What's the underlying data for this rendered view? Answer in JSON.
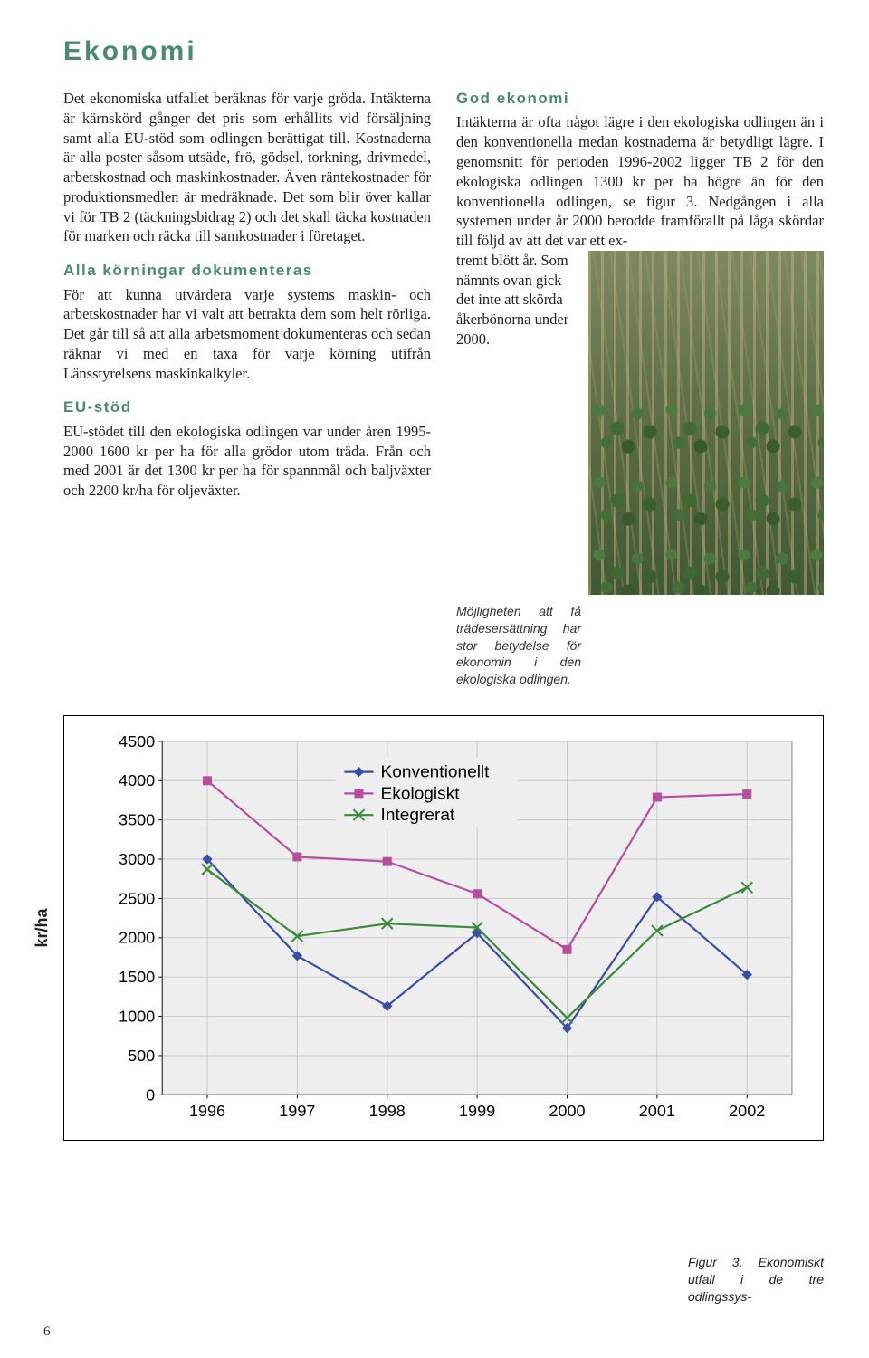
{
  "heading": "Ekonomi",
  "col_left": {
    "p1": "Det ekonomiska utfallet beräknas för varje gröda. Intäkterna är kärnskörd gånger det pris som erhållits vid försäljning samt alla EU-stöd som odlingen berättigat till. Kostnaderna är alla poster såsom utsäde, frö, gödsel, torkning, drivmedel, arbetskostnad och maskinkostnader. Även räntekostnader för produktionsmedlen är medräknade. Det som blir över kallar vi för TB 2 (täckningsbidrag 2) och det skall täcka kostnaden för marken och räcka till samkostnader i företaget.",
    "h2": "Alla körningar dokumenteras",
    "p2": "För att kunna utvärdera varje systems maskin- och arbetskostnader har vi valt att betrakta dem som helt rörliga. Det går till så att alla arbetsmoment dokumenteras och sedan räknar vi med en taxa för varje körning utifrån Länsstyrelsens maskinkalkyler.",
    "h3": "EU-stöd",
    "p3": "EU-stödet till den ekologiska odlingen var under åren 1995-2000 1600 kr per ha för alla grödor utom träda. Från och med 2001 är det 1300 kr per ha för spannmål och baljväxter och 2200 kr/ha för oljeväxter."
  },
  "col_right": {
    "h1": "God ekonomi",
    "p1": "Intäkterna är ofta något lägre i den ekologiska odlingen än i den konventionella medan kostnaderna är betydligt lägre. I genomsnitt för perioden 1996-2002 ligger TB 2 för den ekologiska odlingen 1300 kr per ha högre än för den konventionella odlingen, se figur 3. Nedgången i alla systemen under år 2000 berodde framförallt på låga skördar till följd av att det var ett ex-",
    "wrap": "tremt blött år. Som nämnts ovan gick det inte att skörda åkerbönorna under 2000.",
    "caption": "Möjligheten att få trädesersättning har stor betydelse för ekonomin i den ekologiska odlingen."
  },
  "chart": {
    "y_title": "kr/ha",
    "y_min": 0,
    "y_max": 4500,
    "y_step": 500,
    "x_labels": [
      "1996",
      "1997",
      "1998",
      "1999",
      "2000",
      "2001",
      "2002"
    ],
    "plot_bg": "#eeeeee",
    "grid_color": "#c8c8c8",
    "axis_color": "#888888",
    "tick_font_size": 18,
    "legend_font_size": 19,
    "line_width": 2.2,
    "marker_size": 5,
    "series": [
      {
        "name": "Konventionellt",
        "color": "#3a4fa3",
        "marker": "diamond",
        "values": [
          3000,
          1770,
          1130,
          2060,
          850,
          2520,
          1530
        ]
      },
      {
        "name": "Ekologiskt",
        "color": "#b84d9e",
        "marker": "square",
        "values": [
          4000,
          3030,
          2970,
          2560,
          1850,
          3790,
          3830
        ]
      },
      {
        "name": "Integrerat",
        "color": "#3b8a3b",
        "marker": "x",
        "values": [
          2870,
          2020,
          2180,
          2130,
          980,
          2090,
          2640
        ]
      }
    ]
  },
  "figure_caption": "Figur 3. Ekonomiskt utfall i de tre odlingssys-",
  "page_number": "6"
}
